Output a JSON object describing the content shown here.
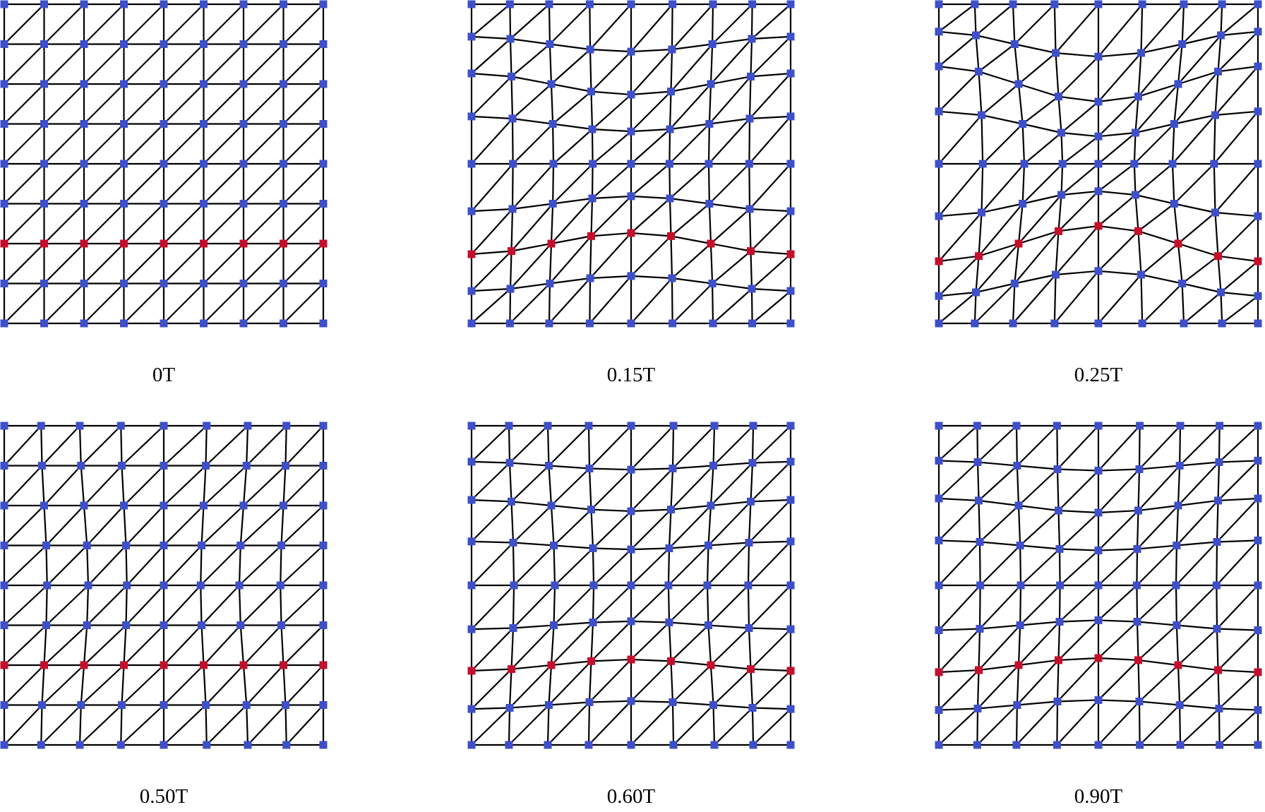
{
  "panels": [
    {
      "label": "0T"
    },
    {
      "label": "0.15T"
    },
    {
      "label": "0.25T"
    },
    {
      "label": "0.50T"
    },
    {
      "label": "0.60T"
    },
    {
      "label": "0.90T"
    }
  ]
}
